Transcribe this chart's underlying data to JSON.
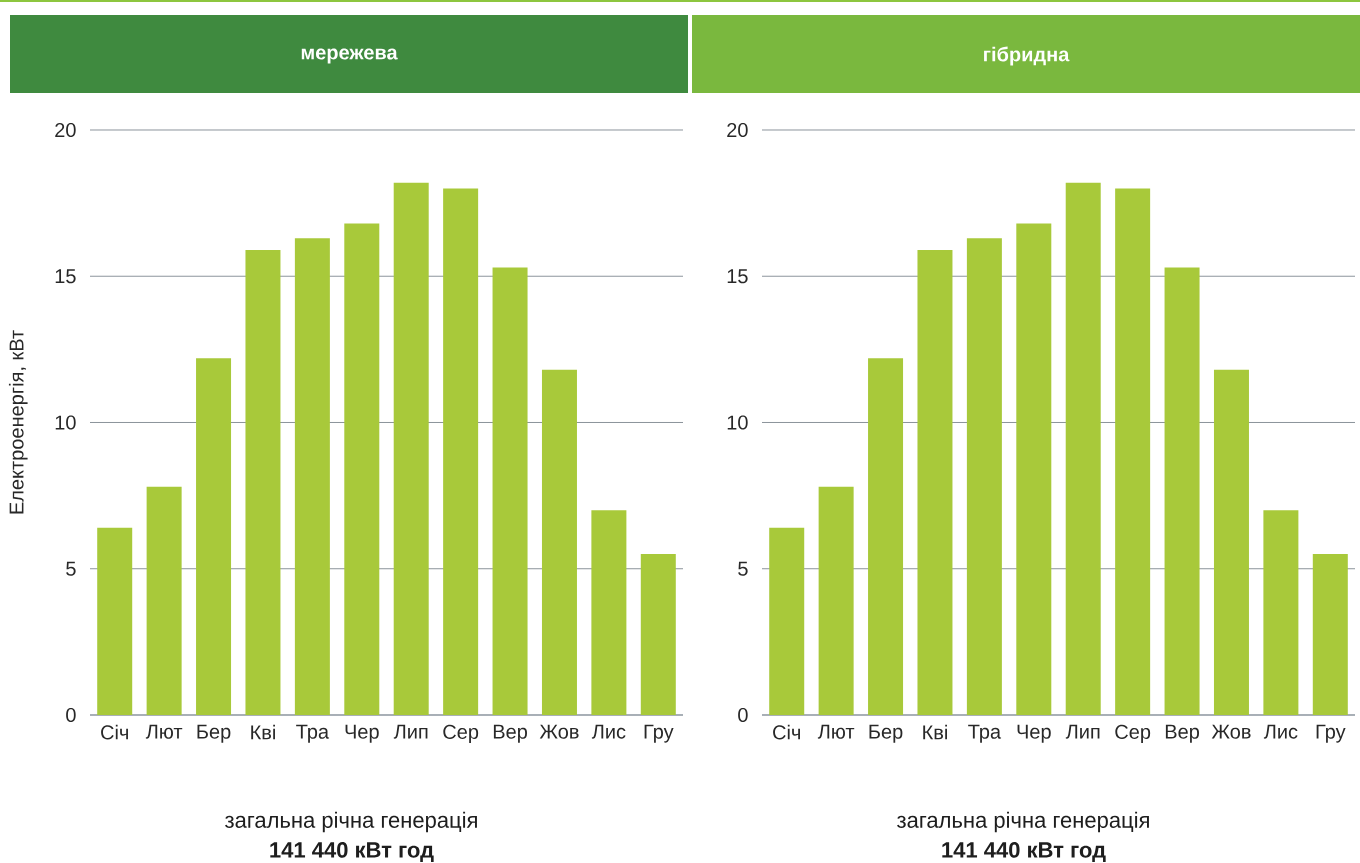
{
  "chart_data": [
    {
      "type": "bar",
      "title": "мережева",
      "ylabel": "Електроенергія,  кВт",
      "categories": [
        "Січ",
        "Лют",
        "Бер",
        "Кві",
        "Тра",
        "Чер",
        "Лип",
        "Сер",
        "Вер",
        "Жов",
        "Лис",
        "Гру"
      ],
      "values": [
        6.4,
        7.8,
        12.2,
        15.9,
        16.3,
        16.8,
        18.2,
        18.0,
        15.3,
        11.8,
        7.0,
        5.5
      ],
      "color": "#a8c93a",
      "ylim": [
        0,
        20
      ],
      "yticks": [
        0,
        5,
        10,
        15,
        20
      ],
      "grid": "y",
      "annotations": [
        "загальна річна генерація",
        "141 440 кВт год"
      ]
    },
    {
      "type": "bar",
      "title": "гібридна",
      "categories": [
        "Січ",
        "Лют",
        "Бер",
        "Кві",
        "Тра",
        "Чер",
        "Лип",
        "Сер",
        "Вер",
        "Жов",
        "Лис",
        "Гру"
      ],
      "values": [
        6.4,
        7.8,
        12.2,
        15.9,
        16.3,
        16.8,
        18.2,
        18.0,
        15.3,
        11.8,
        7.0,
        5.5
      ],
      "color": "#a8c93a",
      "ylim": [
        0,
        20
      ],
      "yticks": [
        0,
        5,
        10,
        15,
        20
      ],
      "grid": "y",
      "annotations": [
        "загальна річна генерація",
        "141 440 кВт год"
      ]
    }
  ]
}
